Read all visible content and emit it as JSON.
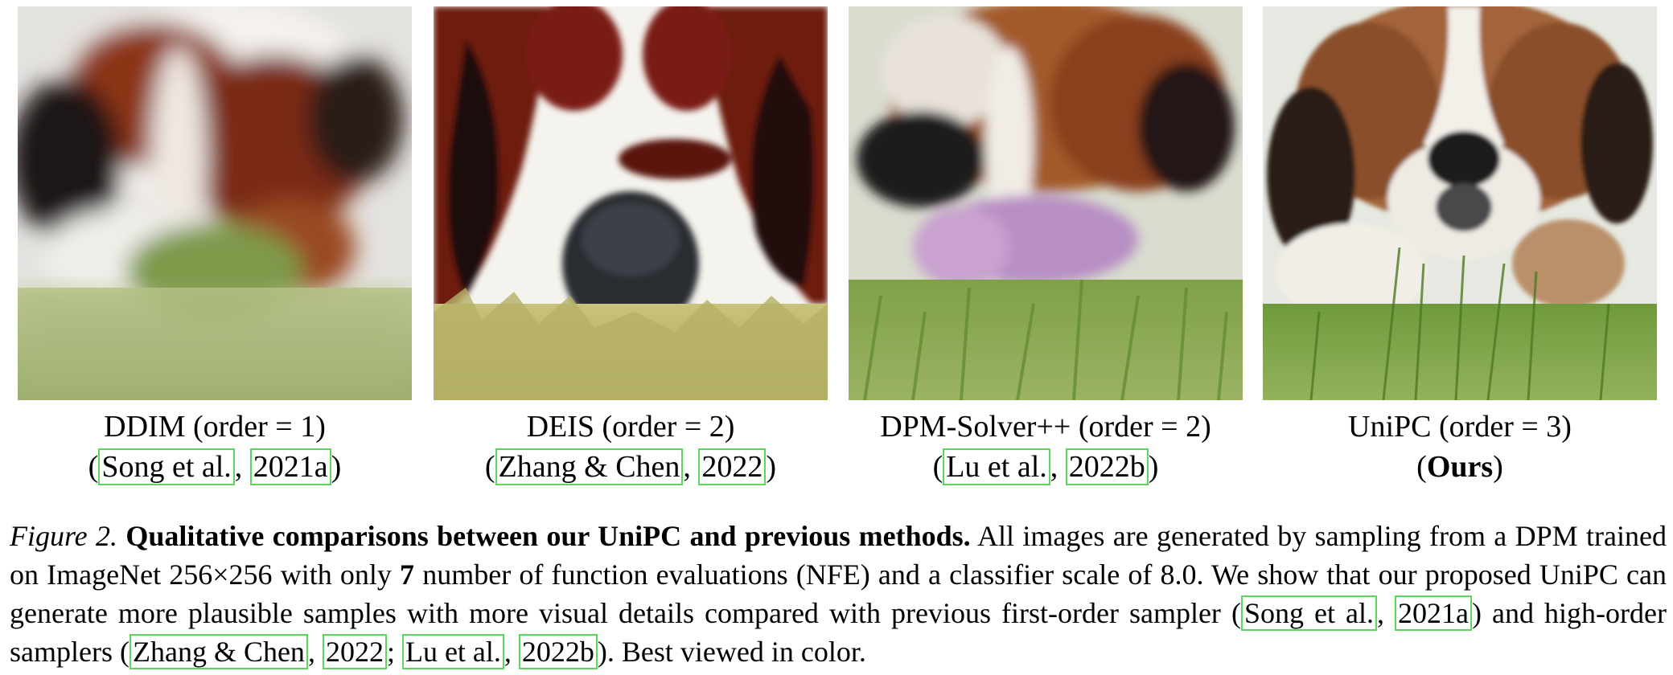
{
  "panels": [
    {
      "method": "DDIM (order = 1)",
      "ref": {
        "open": "(",
        "authors": "Song et al.",
        "sep": ", ",
        "year": "2021a",
        "close": ")"
      }
    },
    {
      "method": "DEIS (order = 2)",
      "ref": {
        "open": "(",
        "authors": "Zhang & Chen",
        "sep": ", ",
        "year": "2022",
        "close": ")"
      }
    },
    {
      "method": "DPM-Solver++ (order = 2)",
      "ref": {
        "open": "(",
        "authors": "Lu et al.",
        "sep": ", ",
        "year": "2022b",
        "close": ")"
      }
    },
    {
      "method": "UniPC (order = 3)",
      "ours": {
        "open": "(",
        "label": "Ours",
        "close": ")"
      }
    }
  ],
  "caption": {
    "label": "Figure 2.",
    "title": "Qualitative comparisons between our UniPC and previous methods.",
    "text1": "All images are generated by sampling from a DPM trained on ImageNet 256×256 with only",
    "nfe": "7",
    "text2": "number of function evaluations (NFE) and a classifier scale of 8.0. We show that our proposed UniPC can generate more plausible samples with more visual details compared with previous first-order sampler (",
    "cite1_authors": "Song et al.",
    "cite1_sep": ", ",
    "cite1_year": "2021a",
    "text3": ") and high-order samplers (",
    "cite2_authors": "Zhang & Chen",
    "cite2_sep": ", ",
    "cite2_year": "2022",
    "cite_sep": "; ",
    "cite3_authors": "Lu et al.",
    "cite3_sep": ", ",
    "cite3_year": "2022b",
    "text4": "). Best viewed in color."
  },
  "colors": {
    "citation_box": "#5cd65c",
    "fur_brown": "#8b3a1a",
    "fur_white": "#f2efe9",
    "grass": "#8aa84a"
  }
}
